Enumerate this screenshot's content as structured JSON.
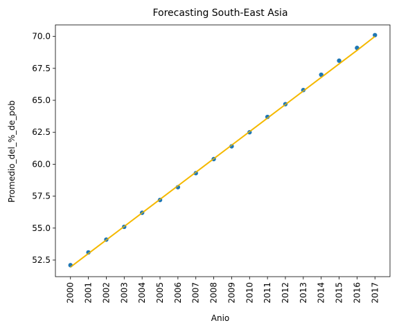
{
  "chart_data": {
    "type": "scatter",
    "title": "Forecasting South-East Asia",
    "xlabel": "Anio",
    "ylabel": "Promedio_del_%_de_pob",
    "x": [
      "2000",
      "2001",
      "2002",
      "2003",
      "2004",
      "2005",
      "2006",
      "2007",
      "2008",
      "2009",
      "2010",
      "2011",
      "2012",
      "2013",
      "2014",
      "2015",
      "2016",
      "2017"
    ],
    "series": [
      {
        "name": "observed",
        "kind": "scatter",
        "color": "#1f77b4",
        "values": [
          52.1,
          53.1,
          54.1,
          55.1,
          56.2,
          57.2,
          58.2,
          59.3,
          60.4,
          61.4,
          62.5,
          63.7,
          64.7,
          65.8,
          67.0,
          68.1,
          69.1,
          70.1
        ]
      },
      {
        "name": "forecast",
        "kind": "line",
        "color": "#f5b800",
        "values": [
          51.95,
          53.01,
          54.07,
          55.13,
          56.19,
          57.25,
          58.31,
          59.37,
          60.43,
          61.49,
          62.55,
          63.61,
          64.67,
          65.73,
          66.79,
          67.85,
          68.91,
          70.0
        ]
      }
    ],
    "yticks": [
      "52.5",
      "55.0",
      "57.5",
      "60.0",
      "62.5",
      "65.0",
      "67.5",
      "70.0"
    ],
    "ylim": [
      51.2,
      70.9
    ],
    "grid": false,
    "legend": "none"
  }
}
